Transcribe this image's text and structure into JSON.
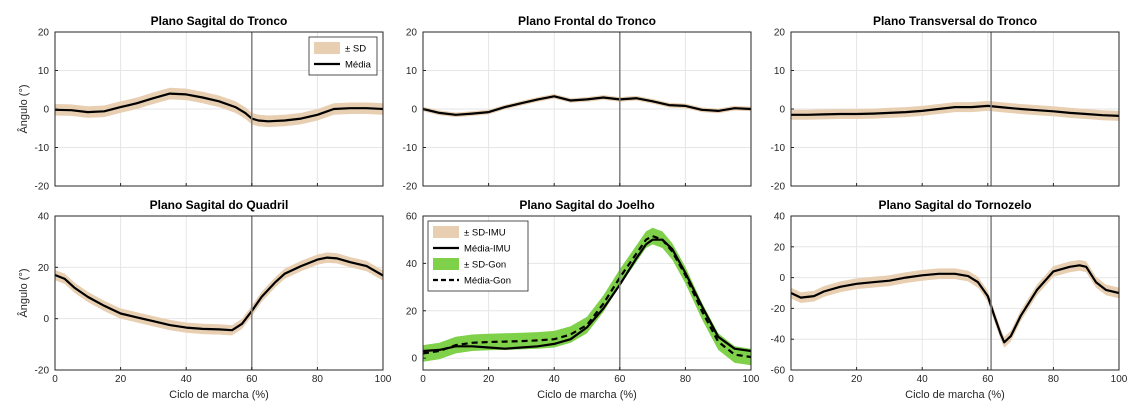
{
  "figure": {
    "xlabel": "Ciclo de marcha (%)",
    "ylabel": "Ângulo (°)"
  },
  "colors": {
    "sd_band": "#e8cfb2",
    "sd_gon_band": "#7fd14a",
    "mean_line": "#000000",
    "vline": "#808080",
    "grid": "#e6e6e6"
  },
  "chart_data": [
    {
      "type": "line",
      "title": "Plano Sagital do Tronco",
      "xlim": [
        0,
        100
      ],
      "ylim": [
        -20,
        20
      ],
      "xticks": [
        0,
        20,
        40,
        60,
        80,
        100
      ],
      "yticks": [
        20,
        10,
        0,
        -10,
        -20
      ],
      "show_xticklabels": false,
      "show_ylabel": true,
      "show_xlabel": false,
      "vline": 60,
      "grid": true,
      "legend": {
        "placement": "top-right",
        "entries": [
          "± SD",
          "Média"
        ]
      },
      "x": [
        0,
        5,
        10,
        15,
        20,
        25,
        30,
        35,
        40,
        45,
        50,
        55,
        58,
        60,
        62,
        65,
        70,
        75,
        80,
        85,
        90,
        95,
        100
      ],
      "series": [
        {
          "name": "Média",
          "values": [
            -0.2,
            -0.3,
            -0.8,
            -0.6,
            0.5,
            1.5,
            2.8,
            4.0,
            3.8,
            3.0,
            2.0,
            0.5,
            -1.0,
            -2.5,
            -3.0,
            -3.2,
            -3.0,
            -2.5,
            -1.5,
            0.0,
            0.2,
            0.2,
            0.0
          ],
          "sd": 1.5
        }
      ]
    },
    {
      "type": "line",
      "title": "Plano Frontal do Tronco",
      "xlim": [
        0,
        100
      ],
      "ylim": [
        -20,
        20
      ],
      "xticks": [
        0,
        20,
        40,
        60,
        80,
        100
      ],
      "yticks": [
        20,
        10,
        0,
        -10,
        -20
      ],
      "show_xticklabels": false,
      "show_ylabel": false,
      "show_xlabel": false,
      "vline": 60,
      "grid": true,
      "legend": null,
      "x": [
        0,
        5,
        10,
        15,
        20,
        25,
        30,
        35,
        40,
        45,
        50,
        55,
        60,
        65,
        70,
        75,
        80,
        85,
        90,
        95,
        100
      ],
      "series": [
        {
          "name": "Média",
          "values": [
            0.0,
            -1.0,
            -1.5,
            -1.2,
            -0.8,
            0.5,
            1.5,
            2.5,
            3.3,
            2.2,
            2.5,
            3.0,
            2.5,
            2.8,
            2.0,
            1.0,
            0.8,
            -0.2,
            -0.5,
            0.2,
            0.0
          ],
          "sd": 0.6
        }
      ]
    },
    {
      "type": "line",
      "title": "Plano Transversal do Tronco",
      "xlim": [
        0,
        100
      ],
      "ylim": [
        -20,
        20
      ],
      "xticks": [
        0,
        20,
        40,
        60,
        80,
        100
      ],
      "yticks": [
        20,
        10,
        0,
        -10,
        -20
      ],
      "show_xticklabels": false,
      "show_ylabel": false,
      "show_xlabel": false,
      "vline": 61,
      "grid": true,
      "legend": null,
      "x": [
        0,
        5,
        10,
        15,
        20,
        25,
        30,
        35,
        40,
        45,
        50,
        55,
        60,
        65,
        70,
        75,
        80,
        85,
        90,
        95,
        100
      ],
      "series": [
        {
          "name": "Média",
          "values": [
            -1.5,
            -1.5,
            -1.4,
            -1.3,
            -1.3,
            -1.2,
            -1.0,
            -0.8,
            -0.5,
            0.0,
            0.5,
            0.5,
            0.8,
            0.4,
            0.0,
            -0.3,
            -0.6,
            -1.0,
            -1.3,
            -1.6,
            -1.8
          ],
          "sd": 1.3
        }
      ]
    },
    {
      "type": "line",
      "title": "Plano Sagital do Quadril",
      "xlim": [
        0,
        100
      ],
      "ylim": [
        -20,
        40
      ],
      "xticks": [
        0,
        20,
        40,
        60,
        80,
        100
      ],
      "yticks": [
        40,
        20,
        0,
        -20
      ],
      "show_xticklabels": true,
      "show_ylabel": true,
      "show_xlabel": true,
      "vline": 60,
      "grid": true,
      "legend": null,
      "x": [
        0,
        3,
        6,
        10,
        15,
        20,
        25,
        30,
        35,
        40,
        45,
        50,
        54,
        57,
        60,
        63,
        67,
        70,
        75,
        80,
        83,
        86,
        90,
        95,
        100
      ],
      "series": [
        {
          "name": "Média",
          "values": [
            17,
            15.5,
            12,
            8.5,
            5,
            2,
            0.5,
            -1,
            -2.5,
            -3.5,
            -4,
            -4.2,
            -4.5,
            -2,
            3,
            8.5,
            14,
            17.5,
            20.5,
            23,
            23.8,
            23.5,
            22,
            20.5,
            16.8
          ],
          "sd": 2.0
        }
      ]
    },
    {
      "type": "line",
      "title": "Plano Sagital do Joelho",
      "xlim": [
        0,
        100
      ],
      "ylim": [
        -5,
        60
      ],
      "xticks": [
        0,
        20,
        40,
        60,
        80,
        100
      ],
      "yticks": [
        60,
        40,
        20,
        0
      ],
      "show_xticklabels": true,
      "show_ylabel": false,
      "show_xlabel": true,
      "vline": 60,
      "grid": true,
      "legend": {
        "placement": "top-left",
        "entries": [
          "± SD-IMU",
          "Média-IMU",
          "± SD-Gon",
          "Média-Gon"
        ]
      },
      "x": [
        0,
        5,
        10,
        15,
        20,
        25,
        30,
        35,
        40,
        45,
        50,
        55,
        60,
        65,
        68,
        70,
        73,
        76,
        80,
        85,
        90,
        95,
        100
      ],
      "series": [
        {
          "name": "Média-IMU",
          "values": [
            3,
            3.5,
            5,
            5,
            4.5,
            4,
            4.5,
            5,
            6,
            8,
            13,
            21,
            31,
            42,
            48,
            50,
            50,
            46,
            36,
            22,
            9,
            4,
            3
          ],
          "sd": 0.6,
          "band": "imu"
        },
        {
          "name": "Média-Gon",
          "values": [
            2,
            3,
            5.5,
            6.5,
            6.8,
            7,
            7.2,
            7.5,
            8,
            10,
            14,
            23,
            34,
            44,
            50,
            51.5,
            50,
            45,
            35,
            20,
            7,
            1.5,
            0.5
          ],
          "sd": 3.5,
          "band": "gon",
          "dashed": true
        }
      ]
    },
    {
      "type": "line",
      "title": "Plano Sagital do Tornozelo",
      "xlim": [
        0,
        100
      ],
      "ylim": [
        -60,
        40
      ],
      "xticks": [
        0,
        20,
        40,
        60,
        80,
        100
      ],
      "yticks": [
        40,
        20,
        0,
        -20,
        -40,
        -60
      ],
      "show_xticklabels": true,
      "show_ylabel": false,
      "show_xlabel": true,
      "vline": 61,
      "grid": true,
      "legend": null,
      "x": [
        0,
        3,
        7,
        10,
        15,
        20,
        25,
        30,
        35,
        40,
        45,
        50,
        54,
        57,
        60,
        62,
        64,
        65,
        67,
        70,
        75,
        80,
        85,
        88,
        90,
        93,
        96,
        100
      ],
      "series": [
        {
          "name": "Média",
          "values": [
            -10,
            -13,
            -12,
            -9,
            -6,
            -4,
            -3,
            -2,
            0,
            1.5,
            2.5,
            2.5,
            1,
            -3,
            -12,
            -25,
            -37,
            -42,
            -38,
            -25,
            -8,
            4,
            7,
            8,
            7,
            -3,
            -8,
            -10
          ],
          "sd": 3.5
        }
      ]
    }
  ]
}
